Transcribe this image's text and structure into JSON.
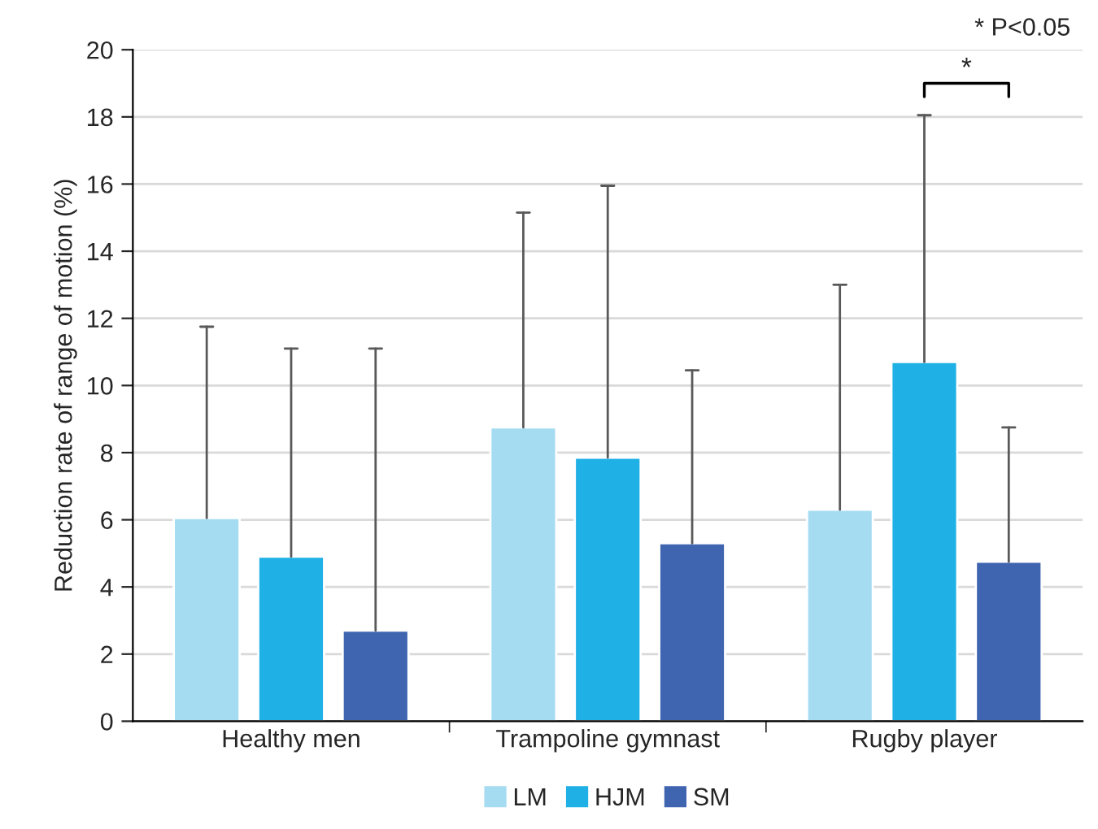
{
  "chart_data": {
    "type": "bar",
    "ylabel": "Reduction rate of range of motion (%)",
    "categories": [
      "Healthy men",
      "Trampoline gymnast",
      "Rugby player"
    ],
    "series": [
      {
        "name": "LM",
        "color": "#a5dcf2",
        "values": [
          6.05,
          8.75,
          6.3
        ],
        "errors": [
          [
            6.05,
            11.75
          ],
          [
            8.75,
            15.15
          ],
          [
            6.3,
            13.0
          ]
        ]
      },
      {
        "name": "HJM",
        "color": "#1fb0e6",
        "values": [
          4.9,
          7.85,
          10.7
        ],
        "errors": [
          [
            4.9,
            11.1
          ],
          [
            7.85,
            15.95
          ],
          [
            10.7,
            18.05
          ]
        ]
      },
      {
        "name": "SM",
        "color": "#3f64b0",
        "values": [
          2.7,
          5.3,
          4.75
        ],
        "errors": [
          [
            2.7,
            11.1
          ],
          [
            5.3,
            10.45
          ],
          [
            4.75,
            8.75
          ]
        ]
      }
    ],
    "ylim": [
      0,
      20
    ],
    "yticks": [
      0,
      2,
      4,
      6,
      8,
      10,
      12,
      14,
      16,
      18,
      20
    ],
    "grid": "y",
    "legend": "bottom",
    "annotations": [
      "* P<0.05",
      "*"
    ]
  }
}
